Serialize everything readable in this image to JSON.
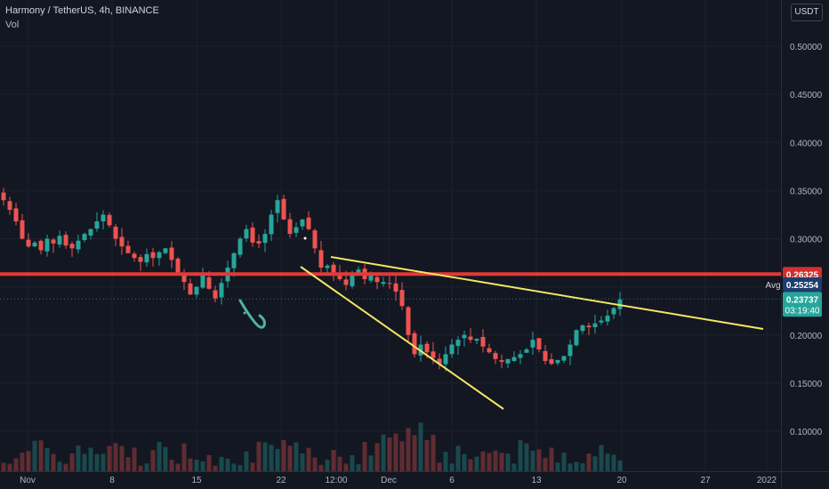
{
  "header": {
    "symbol": "Harmony / TetherUS, 4h, BINANCE",
    "volume_label": "Vol",
    "currency_button": "USDT"
  },
  "chart_data": {
    "type": "candlestick",
    "ylim": [
      0.05,
      0.53
    ],
    "y_ticks": [
      "0.50000",
      "0.45000",
      "0.40000",
      "0.35000",
      "0.30000",
      "0.25000",
      "0.20000",
      "0.15000",
      "0.10000"
    ],
    "x_ticks": [
      "Nov",
      "8",
      "15",
      "22",
      "12:00",
      "Dec",
      "6",
      "13",
      "20",
      "27",
      "2022"
    ],
    "closes": [
      0.34,
      0.33,
      0.318,
      0.3,
      0.292,
      0.296,
      0.288,
      0.3,
      0.295,
      0.303,
      0.293,
      0.29,
      0.298,
      0.305,
      0.31,
      0.318,
      0.325,
      0.314,
      0.3,
      0.292,
      0.285,
      0.28,
      0.276,
      0.284,
      0.28,
      0.286,
      0.29,
      0.278,
      0.265,
      0.255,
      0.242,
      0.25,
      0.262,
      0.248,
      0.238,
      0.254,
      0.27,
      0.285,
      0.3,
      0.31,
      0.296,
      0.295,
      0.305,
      0.325,
      0.34,
      0.32,
      0.305,
      0.312,
      0.32,
      0.31,
      0.29,
      0.27,
      0.272,
      0.265,
      0.258,
      0.252,
      0.262,
      0.268,
      0.258,
      0.262,
      0.255,
      0.255,
      0.253,
      0.245,
      0.23,
      0.2,
      0.18,
      0.19,
      0.182,
      0.176,
      0.17,
      0.18,
      0.19,
      0.195,
      0.2,
      0.195,
      0.196,
      0.188,
      0.182,
      0.175,
      0.172,
      0.175,
      0.177,
      0.18,
      0.185,
      0.195,
      0.185,
      0.173,
      0.17,
      0.174,
      0.178,
      0.19,
      0.205,
      0.21,
      0.208,
      0.212,
      0.215,
      0.22,
      0.228,
      0.237
    ],
    "volume_label": "Vol",
    "drawn_lines": [
      {
        "name": "horizontal-level",
        "color": "#e53935",
        "y": 0.26325
      },
      {
        "name": "upper-trendline",
        "color": "#f5e663"
      },
      {
        "name": "lower-trendline",
        "color": "#f5e663"
      },
      {
        "name": "hand-drawn-arrow",
        "color": "#4fb3a4"
      }
    ],
    "price_labels": [
      {
        "text": "0.26325",
        "color": "#d32f2f",
        "value": 0.26325
      },
      {
        "text": "Avg",
        "value": 0.25254,
        "label": "0.25254",
        "color": "#1e3c6e"
      },
      {
        "text": "0.23737",
        "value": 0.23737,
        "sub": "03:19:40",
        "color": "#26a69a"
      }
    ]
  }
}
